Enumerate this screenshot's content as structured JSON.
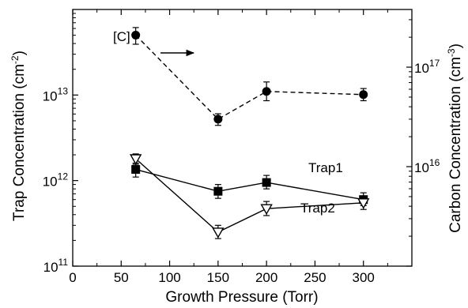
{
  "chart_data": {
    "type": "line",
    "xlabel": "Growth Pressure (Torr)",
    "ylabel_left": "Trap Concentration (cm",
    "ylabel_left_sup": "-2",
    "ylabel_left_end": ")",
    "ylabel_right": "Carbon Concentration (cm",
    "ylabel_right_sup": "-3",
    "ylabel_right_end": ")",
    "xlim": [
      0,
      350
    ],
    "x_ticks": [
      "0",
      "50",
      "100",
      "150",
      "200",
      "250",
      "300"
    ],
    "x_tick_values": [
      0,
      50,
      100,
      150,
      200,
      250,
      300
    ],
    "y_left_scale": "log",
    "y_left_lim": [
      100000000000.0,
      100000000000000.0
    ],
    "y_left_ticks": [
      {
        "value": 100000000000.0,
        "base": "10",
        "exp": "11"
      },
      {
        "value": 1000000000000.0,
        "base": "10",
        "exp": "12"
      },
      {
        "value": 10000000000000.0,
        "base": "10",
        "exp": "13"
      }
    ],
    "y_right_scale": "log",
    "y_right_lim": [
      1000000000000000.0,
      3.8e+17
    ],
    "y_right_ticks": [
      {
        "value": 1e+16,
        "base": "10",
        "exp": "16"
      },
      {
        "value": 1e+17,
        "base": "10",
        "exp": "17"
      }
    ],
    "series": [
      {
        "name": "[C]",
        "axis": "right",
        "marker": "circle",
        "line": "dashed",
        "x": [
          65,
          150,
          200,
          300
        ],
        "y": [
          2.1e+17,
          3e+16,
          5.7e+16,
          5.3e+16
        ],
        "err_low": [
          1.7e+17,
          2.6e+16,
          4.6e+16,
          4.6e+16
        ],
        "err_high": [
          2.5e+17,
          3.4e+16,
          7.1e+16,
          6.1e+16
        ]
      },
      {
        "name": "Trap1",
        "axis": "left",
        "marker": "square",
        "line": "solid",
        "x": [
          65,
          150,
          200,
          300
        ],
        "y": [
          1350000000000.0,
          750000000000.0,
          950000000000.0,
          600000000000.0
        ],
        "err_low": [
          1100000000000.0,
          620000000000.0,
          800000000000.0,
          510000000000.0
        ],
        "err_high": [
          1600000000000.0,
          900000000000.0,
          1150000000000.0,
          720000000000.0
        ]
      },
      {
        "name": "Trap2",
        "axis": "left",
        "marker": "triangle-down",
        "line": "solid",
        "x": [
          65,
          150,
          200,
          300
        ],
        "y": [
          1800000000000.0,
          250000000000.0,
          470000000000.0,
          550000000000.0
        ],
        "err_low": [
          1550000000000.0,
          210000000000.0,
          390000000000.0,
          460000000000.0
        ],
        "err_high": [
          2050000000000.0,
          300000000000.0,
          570000000000.0,
          650000000000.0
        ]
      }
    ],
    "annotations": [
      {
        "text": "[C]",
        "points_to": "right-axis"
      }
    ]
  }
}
